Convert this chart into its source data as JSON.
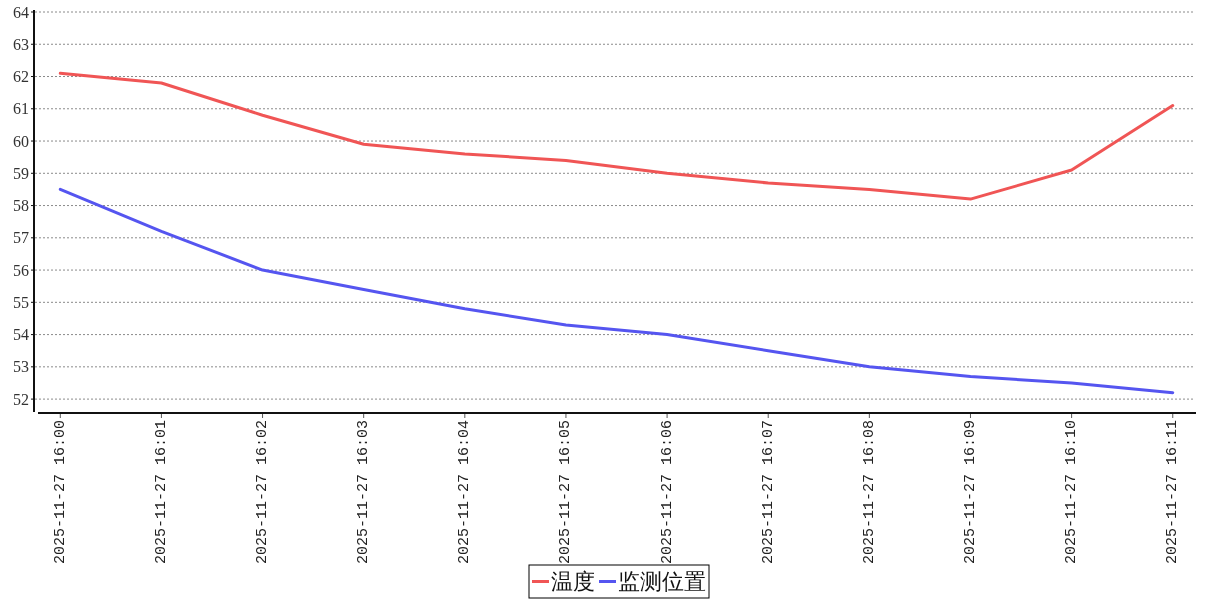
{
  "chart_data": {
    "type": "line",
    "categories": [
      "2025-11-27 16:00",
      "2025-11-27 16:01",
      "2025-11-27 16:02",
      "2025-11-27 16:03",
      "2025-11-27 16:04",
      "2025-11-27 16:05",
      "2025-11-27 16:06",
      "2025-11-27 16:07",
      "2025-11-27 16:08",
      "2025-11-27 16:09",
      "2025-11-27 16:10",
      "2025-11-27 16:11"
    ],
    "series": [
      {
        "name": "温度",
        "color": "#f05555",
        "values": [
          62.1,
          61.8,
          60.8,
          59.9,
          59.6,
          59.4,
          59.0,
          58.7,
          58.5,
          58.2,
          59.1,
          61.1
        ]
      },
      {
        "name": "监测位置",
        "color": "#5555f0",
        "values": [
          58.5,
          57.2,
          56.0,
          55.4,
          54.8,
          54.3,
          54.0,
          53.5,
          53.0,
          52.7,
          52.5,
          52.2
        ]
      }
    ],
    "ylim": [
      51.6,
      64
    ],
    "yticks": [
      52,
      53,
      54,
      55,
      56,
      57,
      58,
      59,
      60,
      61,
      62,
      63,
      64
    ],
    "grid": "y",
    "legend": "bottom",
    "line_style": "solid"
  }
}
